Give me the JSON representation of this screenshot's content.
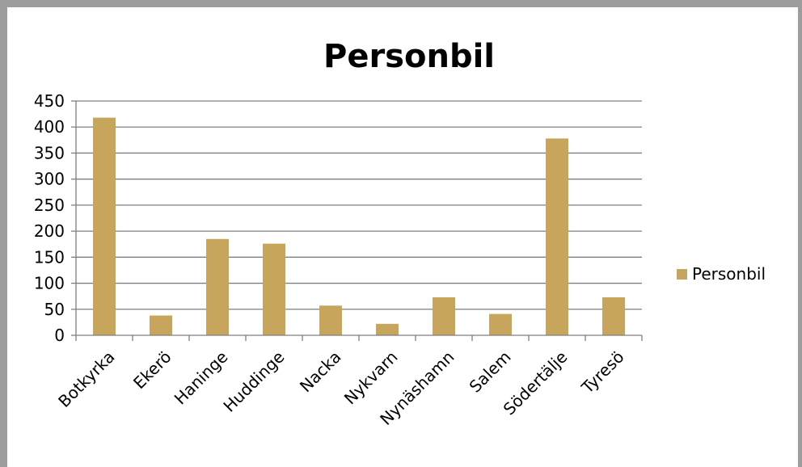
{
  "chart_data": {
    "type": "bar",
    "title": "Personbil",
    "categories": [
      "Botkyrka",
      "Ekerö",
      "Haninge",
      "Huddinge",
      "Nacka",
      "Nykvarn",
      "Nynäshamn",
      "Salem",
      "Södertälje",
      "Tyresö"
    ],
    "series": [
      {
        "name": "Personbil",
        "values": [
          418,
          38,
          185,
          176,
          57,
          22,
          73,
          41,
          378,
          73
        ]
      }
    ],
    "ylim": [
      0,
      450
    ],
    "yticks": [
      0,
      50,
      100,
      150,
      200,
      250,
      300,
      350,
      400,
      450
    ],
    "grid": true,
    "legend": "right",
    "colors": {
      "bar": "#c8a55c",
      "grid": "#7f7f7f",
      "axis": "#7f7f7f",
      "frame": "#9d9d9d"
    }
  }
}
